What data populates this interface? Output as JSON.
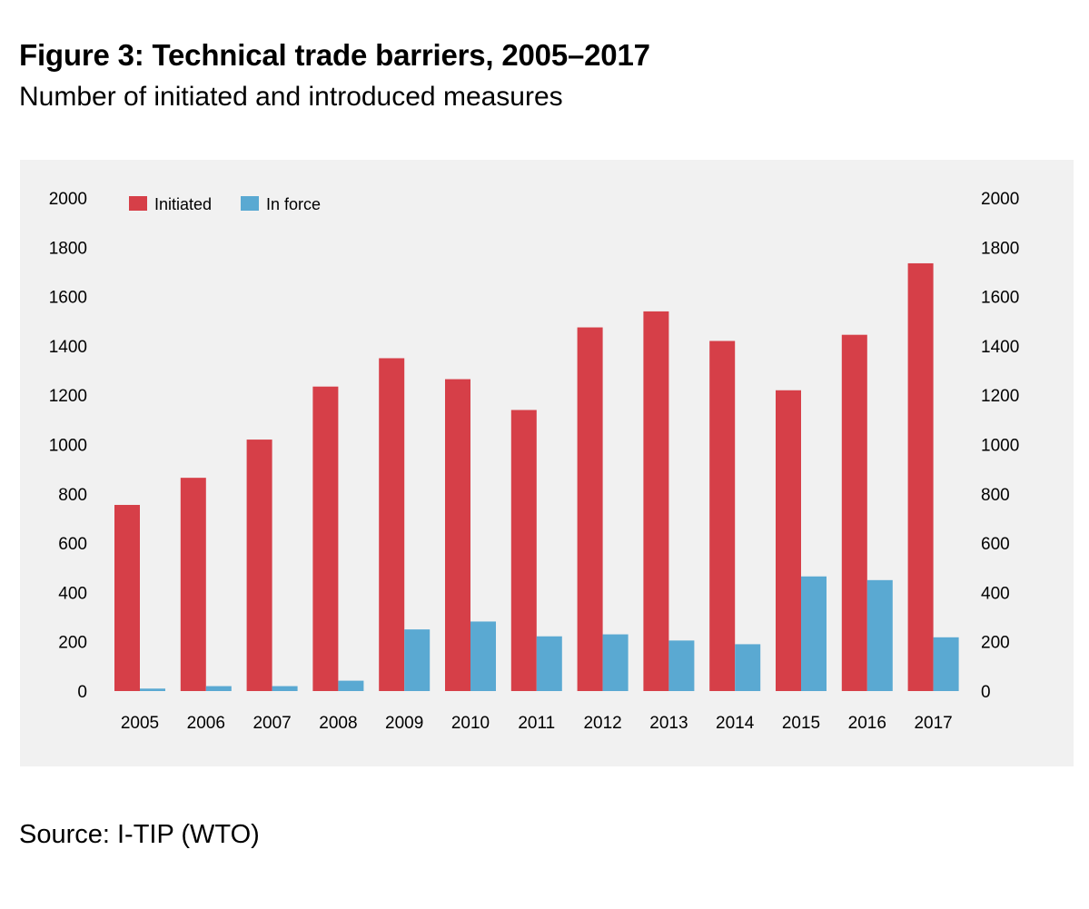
{
  "title": "Figure 3: Technical trade barriers, 2005–2017",
  "subtitle": "Number of initiated and introduced measures",
  "source": "Source: I-TIP (WTO)",
  "chart_data": {
    "type": "bar",
    "title": "Figure 3: Technical trade barriers, 2005–2017",
    "subtitle": "Number of initiated and introduced measures",
    "xlabel": "",
    "ylabel": "",
    "ylim": [
      0,
      2000
    ],
    "y_ticks": [
      0,
      200,
      400,
      600,
      800,
      1000,
      1200,
      1400,
      1600,
      1800,
      2000
    ],
    "secondary_y_axis": true,
    "grid": false,
    "legend_position": "top-left",
    "categories": [
      "2005",
      "2006",
      "2007",
      "2008",
      "2009",
      "2010",
      "2011",
      "2012",
      "2013",
      "2014",
      "2015",
      "2016",
      "2017"
    ],
    "series": [
      {
        "name": "Initiated",
        "color": "#d63f48",
        "values": [
          755,
          865,
          1020,
          1235,
          1350,
          1265,
          1140,
          1475,
          1540,
          1420,
          1220,
          1445,
          1735
        ]
      },
      {
        "name": "In force",
        "color": "#5aa9d2",
        "values": [
          10,
          20,
          20,
          42,
          250,
          282,
          222,
          230,
          205,
          190,
          465,
          450,
          218
        ]
      }
    ]
  }
}
